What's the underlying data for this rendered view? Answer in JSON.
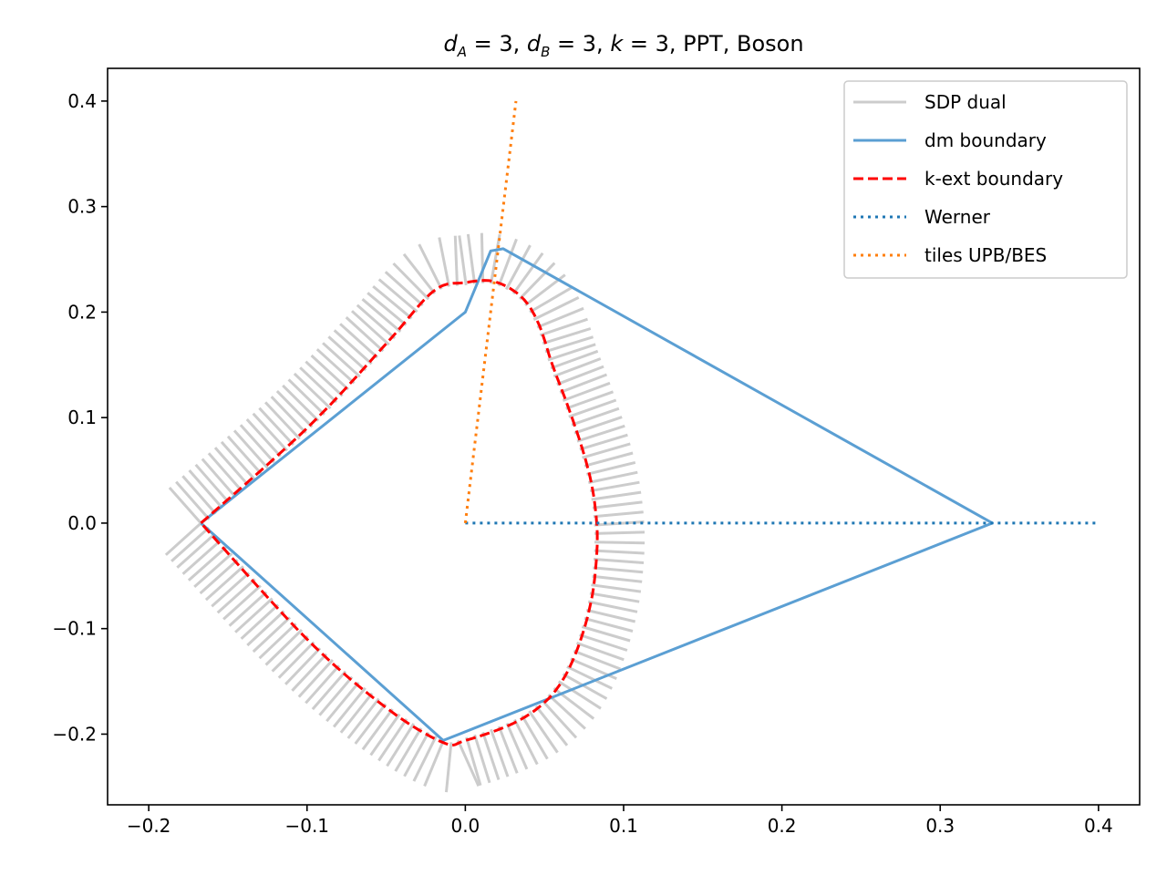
{
  "chart_data": {
    "type": "line",
    "title": {
      "math_part1": "d",
      "sub_a": "A",
      "eq1": " = 3, ",
      "math_part2": "d",
      "sub_b": "B",
      "eq2": " = 3, ",
      "math_k": "k",
      "eq3": " = 3,",
      "rest": " PPT, Boson"
    },
    "xlim": [
      -0.226,
      0.426
    ],
    "ylim": [
      -0.267,
      0.431
    ],
    "xticks": [
      -0.2,
      -0.1,
      0.0,
      0.1,
      0.2,
      0.3,
      0.4
    ],
    "xtick_labels": [
      "−0.2",
      "−0.1",
      "0.0",
      "0.1",
      "0.2",
      "0.3",
      "0.4"
    ],
    "yticks": [
      -0.2,
      -0.1,
      0.0,
      0.1,
      0.2,
      0.3,
      0.4
    ],
    "ytick_labels": [
      "−0.2",
      "−0.1",
      "0.0",
      "0.1",
      "0.2",
      "0.3",
      "0.4"
    ],
    "grid": false,
    "legend_position": "top-right",
    "colors": {
      "sdp": "#cccccc",
      "dm": "#5b9fd3",
      "kext": "#ff0000",
      "werner": "#1f77b4",
      "tiles": "#ff7f0e"
    },
    "series": [
      {
        "name": "SDP dual",
        "style": "solid-gray",
        "segments_note": "dual hyperplane segments drawn along the k-ext boundary"
      },
      {
        "name": "dm boundary",
        "style": "solid",
        "x": [
          -0.167,
          0.0,
          0.016,
          0.024,
          0.333,
          -0.014,
          -0.167
        ],
        "y": [
          0.0,
          0.2,
          0.258,
          0.26,
          0.0,
          -0.206,
          0.0
        ]
      },
      {
        "name": "k-ext boundary",
        "style": "dashed",
        "x": [
          -0.167,
          -0.1,
          -0.05,
          -0.02,
          0.0,
          0.018,
          0.035,
          0.046,
          0.055,
          0.065,
          0.074,
          0.08,
          0.083,
          0.083,
          0.08,
          0.073,
          0.063,
          0.05,
          0.03,
          0.0,
          -0.014,
          -0.05,
          -0.1,
          -0.167
        ],
        "y": [
          0.0,
          0.09,
          0.17,
          0.22,
          0.228,
          0.229,
          0.215,
          0.19,
          0.15,
          0.11,
          0.07,
          0.035,
          0.0,
          -0.03,
          -0.07,
          -0.11,
          -0.145,
          -0.17,
          -0.19,
          -0.206,
          -0.208,
          -0.175,
          -0.11,
          0.0
        ]
      },
      {
        "name": "Werner",
        "style": "dotted",
        "x": [
          0.0,
          0.4
        ],
        "y": [
          0.0,
          0.0
        ]
      },
      {
        "name": "tiles UPB/BES",
        "style": "dotted",
        "x": [
          0.0,
          0.032
        ],
        "y": [
          0.0,
          0.4
        ]
      }
    ]
  }
}
